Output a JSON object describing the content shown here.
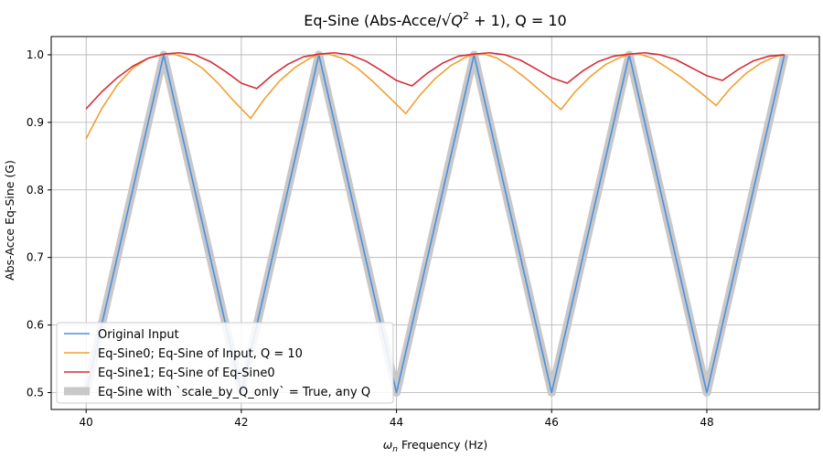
{
  "chart_data": {
    "type": "line",
    "title_prefix": "Eq-Sine (Abs-Acce/",
    "title_radicand": "Q",
    "title_exponent": "2",
    "title_radicand_rest": " + 1",
    "title_suffix": "), Q = 10",
    "xlabel_symbol": "ω",
    "xlabel_subscript": "n",
    "xlabel_rest": " Frequency (Hz)",
    "ylabel": "Abs-Acce Eq-Sine (G)",
    "xlim": [
      39.55,
      49.45
    ],
    "ylim": [
      0.475,
      1.027
    ],
    "xticks": [
      40,
      42,
      44,
      46,
      48
    ],
    "xtick_labels": [
      "40",
      "42",
      "44",
      "46",
      "48"
    ],
    "yticks": [
      0.5,
      0.6,
      0.7,
      0.8,
      0.9,
      1.0
    ],
    "ytick_labels": [
      "0.5",
      "0.6",
      "0.7",
      "0.8",
      "0.9",
      "1.0"
    ],
    "grid": true,
    "legend_position": "lower-left",
    "series": [
      {
        "name": "Eq-Sine with `scale_by_Q_only` = True, any Q",
        "color": "#c8c8c8",
        "width": "thick",
        "x": [
          40,
          41,
          42,
          43,
          44,
          45,
          46,
          47,
          48,
          49
        ],
        "y": [
          0.5,
          1.0,
          0.5,
          1.0,
          0.5,
          1.0,
          0.5,
          1.0,
          0.5,
          1.0
        ]
      },
      {
        "name": "Original Input",
        "color": "#4a90e2",
        "width": "thin",
        "x": [
          40,
          41,
          42,
          43,
          44,
          45,
          46,
          47,
          48,
          49
        ],
        "y": [
          0.5,
          1.0,
          0.5,
          1.0,
          0.5,
          1.0,
          0.5,
          1.0,
          0.5,
          1.0
        ]
      },
      {
        "name": "Eq-Sine0; Eq-Sine of Input, Q = 10",
        "color": "#f0a030",
        "width": "thin",
        "x": [
          40.0,
          40.2,
          40.4,
          40.6,
          40.8,
          41.0,
          41.1,
          41.3,
          41.5,
          41.7,
          41.9,
          42.12,
          42.3,
          42.5,
          42.7,
          42.9,
          43.0,
          43.1,
          43.3,
          43.5,
          43.7,
          43.9,
          44.12,
          44.3,
          44.5,
          44.7,
          44.9,
          45.0,
          45.1,
          45.3,
          45.5,
          45.7,
          45.9,
          46.12,
          46.3,
          46.5,
          46.7,
          46.9,
          47.0,
          47.1,
          47.3,
          47.5,
          47.7,
          47.9,
          48.12,
          48.3,
          48.5,
          48.7,
          48.9,
          49.0
        ],
        "y": [
          0.876,
          0.92,
          0.955,
          0.98,
          0.995,
          1.001,
          1.002,
          0.995,
          0.98,
          0.958,
          0.932,
          0.906,
          0.935,
          0.962,
          0.982,
          0.996,
          1.0,
          1.002,
          0.995,
          0.98,
          0.96,
          0.938,
          0.913,
          0.94,
          0.965,
          0.984,
          0.997,
          1.0,
          1.002,
          0.995,
          0.98,
          0.962,
          0.942,
          0.919,
          0.945,
          0.968,
          0.986,
          0.997,
          1.0,
          1.002,
          0.995,
          0.98,
          0.964,
          0.946,
          0.925,
          0.95,
          0.972,
          0.988,
          0.998,
          1.0
        ]
      },
      {
        "name": "Eq-Sine1; Eq-Sine of Eq-Sine0",
        "color": "#d62d3a",
        "width": "thin",
        "x": [
          40.0,
          40.2,
          40.4,
          40.6,
          40.8,
          41.0,
          41.2,
          41.4,
          41.6,
          41.8,
          42.0,
          42.2,
          42.4,
          42.6,
          42.8,
          43.0,
          43.2,
          43.4,
          43.6,
          43.8,
          44.0,
          44.2,
          44.4,
          44.6,
          44.8,
          45.0,
          45.2,
          45.4,
          45.6,
          45.8,
          46.0,
          46.2,
          46.4,
          46.6,
          46.8,
          47.0,
          47.2,
          47.4,
          47.6,
          47.8,
          48.0,
          48.2,
          48.4,
          48.6,
          48.8,
          49.0
        ],
        "y": [
          0.92,
          0.945,
          0.966,
          0.983,
          0.995,
          1.001,
          1.003,
          1.0,
          0.99,
          0.975,
          0.958,
          0.95,
          0.97,
          0.986,
          0.997,
          1.001,
          1.003,
          1.0,
          0.991,
          0.977,
          0.962,
          0.954,
          0.973,
          0.988,
          0.998,
          1.001,
          1.003,
          1.0,
          0.992,
          0.979,
          0.966,
          0.958,
          0.976,
          0.99,
          0.998,
          1.001,
          1.003,
          1.0,
          0.993,
          0.981,
          0.969,
          0.962,
          0.978,
          0.991,
          0.998,
          1.0
        ]
      }
    ],
    "legend_entries": [
      {
        "label": "Original Input",
        "color": "#4a90e2",
        "width": "thin"
      },
      {
        "label": "Eq-Sine0; Eq-Sine of Input, Q = 10",
        "color": "#f0a030",
        "width": "thin"
      },
      {
        "label": "Eq-Sine1; Eq-Sine of Eq-Sine0",
        "color": "#d62d3a",
        "width": "thin"
      },
      {
        "label": "Eq-Sine with `scale_by_Q_only` = True, any Q",
        "color": "#c8c8c8",
        "width": "thick"
      }
    ]
  }
}
